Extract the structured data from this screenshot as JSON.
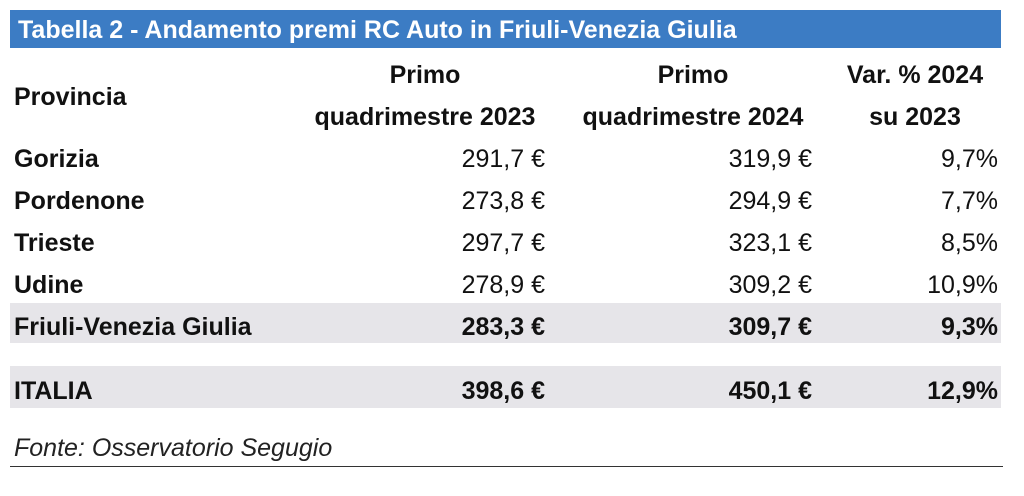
{
  "table": {
    "title": "Tabella 2 - Andamento premi RC Auto in Friuli-Venezia Giulia",
    "headers": {
      "provincia": "Provincia",
      "col1_line1": "Primo",
      "col1_line2": "quadrimestre 2023",
      "col2_line1": "Primo",
      "col2_line2": "quadrimestre 2024",
      "col3_line1": "Var. % 2024",
      "col3_line2": "su 2023"
    },
    "rows": [
      {
        "provincia": "Gorizia",
        "q2023": "291,7 €",
        "q2024": "319,9 €",
        "var": "9,7%"
      },
      {
        "provincia": "Pordenone",
        "q2023": "273,8 €",
        "q2024": "294,9 €",
        "var": "7,7%"
      },
      {
        "provincia": "Trieste",
        "q2023": "297,7 €",
        "q2024": "323,1 €",
        "var": "8,5%"
      },
      {
        "provincia": "Udine",
        "q2023": "278,9 €",
        "q2024": "309,2 €",
        "var": "10,9%"
      }
    ],
    "regional_total": {
      "provincia": "Friuli-Venezia Giulia",
      "q2023": "283,3 €",
      "q2024": "309,7 €",
      "var": "9,3%"
    },
    "national_total": {
      "provincia": "ITALIA",
      "q2023": "398,6 €",
      "q2024": "450,1 €",
      "var": "12,9%"
    },
    "highlight_color": "#e6e5e9",
    "title_color": "#3c7cc4"
  },
  "source": "Fonte: Osservatorio Segugio"
}
